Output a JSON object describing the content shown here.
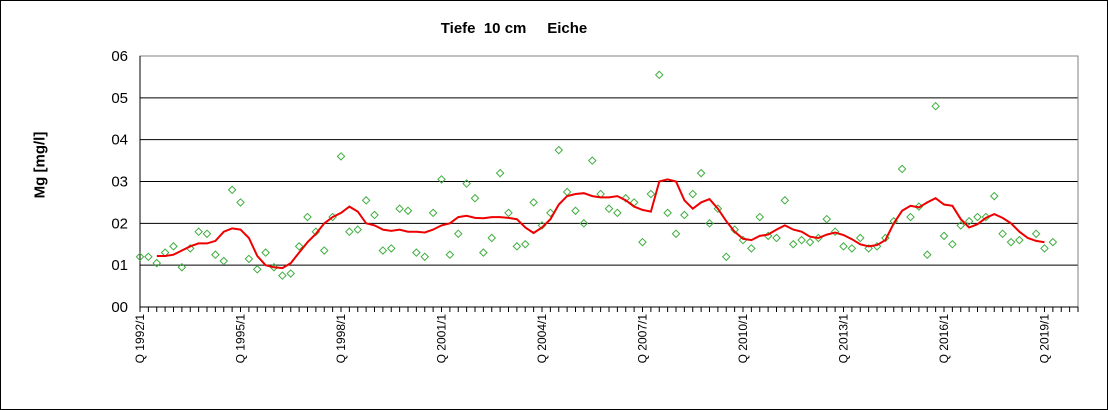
{
  "chart_data": {
    "type": "line",
    "title": "Tiefe  10 cm     Eiche",
    "ylabel": "Mg [mg/l]",
    "xlabel": "",
    "ylim": [
      0,
      0.6
    ],
    "y_ticks": [
      "00",
      "01",
      "02",
      "03",
      "04",
      "05",
      "06"
    ],
    "x_tick_labels": [
      "Q 1992/1",
      "Q 1995/1",
      "Q 1998/1",
      "Q 2001/1",
      "Q 2004/1",
      "Q 2007/1",
      "Q 2010/1",
      "Q 2013/1",
      "Q 2016/1",
      "Q 2019/1"
    ],
    "x_range": [
      1992.0,
      2020.0
    ],
    "grid": true,
    "legend": "none",
    "colors": {
      "points": "#3fae3f",
      "line": "#ee0000",
      "grid": "#000000"
    },
    "series": [
      {
        "marker": "diamond",
        "points": [
          [
            1992.0,
            0.12
          ],
          [
            1992.25,
            0.12
          ],
          [
            1992.5,
            0.105
          ],
          [
            1992.75,
            0.13
          ],
          [
            1993.0,
            0.145
          ],
          [
            1993.25,
            0.095
          ],
          [
            1993.5,
            0.14
          ],
          [
            1993.75,
            0.18
          ],
          [
            1994.0,
            0.175
          ],
          [
            1994.25,
            0.125
          ],
          [
            1994.5,
            0.11
          ],
          [
            1994.75,
            0.28
          ],
          [
            1995.0,
            0.25
          ],
          [
            1995.25,
            0.115
          ],
          [
            1995.5,
            0.09
          ],
          [
            1995.75,
            0.13
          ],
          [
            1996.0,
            0.095
          ],
          [
            1996.25,
            0.075
          ],
          [
            1996.5,
            0.08
          ],
          [
            1996.75,
            0.145
          ],
          [
            1997.0,
            0.215
          ],
          [
            1997.25,
            0.18
          ],
          [
            1997.5,
            0.135
          ],
          [
            1997.75,
            0.215
          ],
          [
            1998.0,
            0.36
          ],
          [
            1998.25,
            0.18
          ],
          [
            1998.5,
            0.185
          ],
          [
            1998.75,
            0.255
          ],
          [
            1999.0,
            0.22
          ],
          [
            1999.25,
            0.135
          ],
          [
            1999.5,
            0.14
          ],
          [
            1999.75,
            0.235
          ],
          [
            2000.0,
            0.23
          ],
          [
            2000.25,
            0.13
          ],
          [
            2000.5,
            0.12
          ],
          [
            2000.75,
            0.225
          ],
          [
            2001.0,
            0.305
          ],
          [
            2001.25,
            0.125
          ],
          [
            2001.5,
            0.175
          ],
          [
            2001.75,
            0.295
          ],
          [
            2002.0,
            0.26
          ],
          [
            2002.25,
            0.13
          ],
          [
            2002.5,
            0.165
          ],
          [
            2002.75,
            0.32
          ],
          [
            2003.0,
            0.225
          ],
          [
            2003.25,
            0.145
          ],
          [
            2003.5,
            0.15
          ],
          [
            2003.75,
            0.25
          ],
          [
            2004.0,
            0.195
          ],
          [
            2004.25,
            0.225
          ],
          [
            2004.5,
            0.375
          ],
          [
            2004.75,
            0.275
          ],
          [
            2005.0,
            0.23
          ],
          [
            2005.25,
            0.2
          ],
          [
            2005.5,
            0.35
          ],
          [
            2005.75,
            0.27
          ],
          [
            2006.0,
            0.235
          ],
          [
            2006.25,
            0.225
          ],
          [
            2006.5,
            0.26
          ],
          [
            2006.75,
            0.25
          ],
          [
            2007.0,
            0.155
          ],
          [
            2007.25,
            0.27
          ],
          [
            2007.5,
            0.555
          ],
          [
            2007.75,
            0.225
          ],
          [
            2008.0,
            0.175
          ],
          [
            2008.25,
            0.22
          ],
          [
            2008.5,
            0.27
          ],
          [
            2008.75,
            0.32
          ],
          [
            2009.0,
            0.2
          ],
          [
            2009.25,
            0.235
          ],
          [
            2009.5,
            0.12
          ],
          [
            2009.75,
            0.185
          ],
          [
            2010.0,
            0.16
          ],
          [
            2010.25,
            0.14
          ],
          [
            2010.5,
            0.215
          ],
          [
            2010.75,
            0.17
          ],
          [
            2011.0,
            0.165
          ],
          [
            2011.25,
            0.255
          ],
          [
            2011.5,
            0.15
          ],
          [
            2011.75,
            0.16
          ],
          [
            2012.0,
            0.155
          ],
          [
            2012.25,
            0.165
          ],
          [
            2012.5,
            0.21
          ],
          [
            2012.75,
            0.18
          ],
          [
            2013.0,
            0.145
          ],
          [
            2013.25,
            0.14
          ],
          [
            2013.5,
            0.165
          ],
          [
            2013.75,
            0.14
          ],
          [
            2014.0,
            0.145
          ],
          [
            2014.25,
            0.165
          ],
          [
            2014.5,
            0.205
          ],
          [
            2014.75,
            0.33
          ],
          [
            2015.0,
            0.215
          ],
          [
            2015.25,
            0.24
          ],
          [
            2015.5,
            0.125
          ],
          [
            2015.75,
            0.48
          ],
          [
            2016.0,
            0.17
          ],
          [
            2016.25,
            0.15
          ],
          [
            2016.5,
            0.195
          ],
          [
            2016.75,
            0.205
          ],
          [
            2017.0,
            0.215
          ],
          [
            2017.25,
            0.215
          ],
          [
            2017.5,
            0.265
          ],
          [
            2017.75,
            0.175
          ],
          [
            2018.0,
            0.155
          ],
          [
            2018.25,
            0.16
          ],
          [
            2018.75,
            0.175
          ],
          [
            2019.0,
            0.14
          ],
          [
            2019.25,
            0.155
          ]
        ]
      },
      {
        "type": "line",
        "points": [
          [
            1992.5,
            0.122
          ],
          [
            1992.75,
            0.122
          ],
          [
            1993.0,
            0.125
          ],
          [
            1993.25,
            0.135
          ],
          [
            1993.5,
            0.145
          ],
          [
            1993.75,
            0.152
          ],
          [
            1994.0,
            0.152
          ],
          [
            1994.25,
            0.158
          ],
          [
            1994.5,
            0.18
          ],
          [
            1994.75,
            0.188
          ],
          [
            1995.0,
            0.185
          ],
          [
            1995.25,
            0.165
          ],
          [
            1995.5,
            0.122
          ],
          [
            1995.75,
            0.1
          ],
          [
            1996.0,
            0.095
          ],
          [
            1996.25,
            0.093
          ],
          [
            1996.5,
            0.105
          ],
          [
            1996.75,
            0.13
          ],
          [
            1997.0,
            0.155
          ],
          [
            1997.25,
            0.175
          ],
          [
            1997.5,
            0.2
          ],
          [
            1997.75,
            0.215
          ],
          [
            1998.0,
            0.225
          ],
          [
            1998.25,
            0.24
          ],
          [
            1998.5,
            0.228
          ],
          [
            1998.75,
            0.2
          ],
          [
            1999.0,
            0.195
          ],
          [
            1999.25,
            0.185
          ],
          [
            1999.5,
            0.182
          ],
          [
            1999.75,
            0.185
          ],
          [
            2000.0,
            0.18
          ],
          [
            2000.25,
            0.18
          ],
          [
            2000.5,
            0.178
          ],
          [
            2000.75,
            0.185
          ],
          [
            2001.0,
            0.195
          ],
          [
            2001.25,
            0.2
          ],
          [
            2001.5,
            0.215
          ],
          [
            2001.75,
            0.218
          ],
          [
            2002.0,
            0.213
          ],
          [
            2002.25,
            0.212
          ],
          [
            2002.5,
            0.215
          ],
          [
            2002.75,
            0.215
          ],
          [
            2003.0,
            0.213
          ],
          [
            2003.25,
            0.21
          ],
          [
            2003.5,
            0.19
          ],
          [
            2003.75,
            0.177
          ],
          [
            2004.0,
            0.19
          ],
          [
            2004.25,
            0.21
          ],
          [
            2004.5,
            0.245
          ],
          [
            2004.75,
            0.265
          ],
          [
            2005.0,
            0.27
          ],
          [
            2005.25,
            0.272
          ],
          [
            2005.5,
            0.265
          ],
          [
            2005.75,
            0.262
          ],
          [
            2006.0,
            0.262
          ],
          [
            2006.25,
            0.265
          ],
          [
            2006.5,
            0.255
          ],
          [
            2006.75,
            0.24
          ],
          [
            2007.0,
            0.232
          ],
          [
            2007.25,
            0.228
          ],
          [
            2007.5,
            0.3
          ],
          [
            2007.75,
            0.305
          ],
          [
            2008.0,
            0.3
          ],
          [
            2008.25,
            0.255
          ],
          [
            2008.5,
            0.235
          ],
          [
            2008.75,
            0.25
          ],
          [
            2009.0,
            0.258
          ],
          [
            2009.25,
            0.235
          ],
          [
            2009.5,
            0.205
          ],
          [
            2009.75,
            0.18
          ],
          [
            2010.0,
            0.163
          ],
          [
            2010.25,
            0.16
          ],
          [
            2010.5,
            0.17
          ],
          [
            2010.75,
            0.173
          ],
          [
            2011.0,
            0.185
          ],
          [
            2011.25,
            0.195
          ],
          [
            2011.5,
            0.185
          ],
          [
            2011.75,
            0.18
          ],
          [
            2012.0,
            0.168
          ],
          [
            2012.25,
            0.165
          ],
          [
            2012.5,
            0.173
          ],
          [
            2012.75,
            0.178
          ],
          [
            2013.0,
            0.172
          ],
          [
            2013.25,
            0.162
          ],
          [
            2013.5,
            0.15
          ],
          [
            2013.75,
            0.145
          ],
          [
            2014.0,
            0.148
          ],
          [
            2014.25,
            0.16
          ],
          [
            2014.5,
            0.2
          ],
          [
            2014.75,
            0.23
          ],
          [
            2015.0,
            0.242
          ],
          [
            2015.25,
            0.238
          ],
          [
            2015.5,
            0.25
          ],
          [
            2015.75,
            0.26
          ],
          [
            2016.0,
            0.245
          ],
          [
            2016.25,
            0.242
          ],
          [
            2016.5,
            0.21
          ],
          [
            2016.75,
            0.19
          ],
          [
            2017.0,
            0.198
          ],
          [
            2017.25,
            0.213
          ],
          [
            2017.5,
            0.222
          ],
          [
            2017.75,
            0.213
          ],
          [
            2018.0,
            0.2
          ],
          [
            2018.25,
            0.18
          ],
          [
            2018.5,
            0.165
          ],
          [
            2018.75,
            0.158
          ],
          [
            2019.0,
            0.155
          ]
        ]
      }
    ]
  }
}
